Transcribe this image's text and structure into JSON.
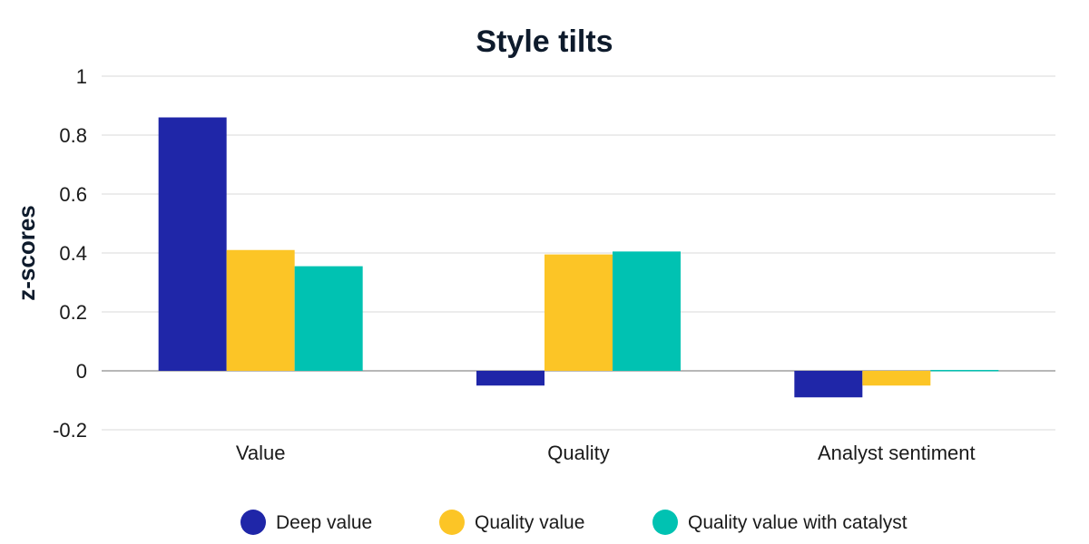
{
  "chart_data": {
    "type": "bar",
    "title": "Style tilts",
    "ylabel": "z-scores",
    "xlabel": "",
    "categories": [
      "Value",
      "Quality",
      "Analyst sentiment"
    ],
    "series": [
      {
        "name": "Deep value",
        "color": "#1f26a8",
        "values": [
          0.86,
          -0.05,
          -0.09
        ]
      },
      {
        "name": "Quality value",
        "color": "#fcc526",
        "values": [
          0.41,
          0.395,
          -0.05
        ]
      },
      {
        "name": "Quality value with catalyst",
        "color": "#00c2b2",
        "values": [
          0.355,
          0.405,
          0.003
        ]
      }
    ],
    "ylim": [
      -0.2,
      1
    ],
    "yticks": [
      1,
      0.8,
      0.6,
      0.4,
      0.2,
      0,
      -0.2
    ],
    "ytick_labels": [
      "1",
      "0.8",
      "0.6",
      "0.4",
      "0.2",
      "0",
      "-0.2"
    ],
    "grid": true,
    "legend": "bottom"
  }
}
